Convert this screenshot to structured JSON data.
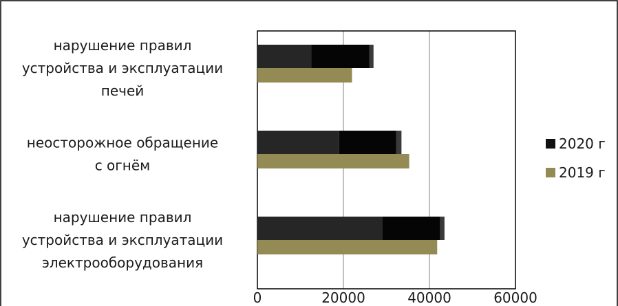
{
  "chart_data": {
    "type": "bar",
    "orientation": "horizontal",
    "stacked_segments": true,
    "title": "",
    "xlabel": "",
    "ylabel": "",
    "xlim": [
      0,
      60000
    ],
    "x_ticks": [
      "0",
      "20000",
      "40000",
      "60000"
    ],
    "grid": "vertical gridlines",
    "legend_position": "right",
    "categories": [
      {
        "lines": [
          "нарушение правил",
          "устройства и эксплуатации",
          "печей"
        ]
      },
      {
        "lines": [
          "неосторожное обращение",
          "с огнём"
        ]
      },
      {
        "lines": [
          "нарушение правил",
          "устройства и эксплуатации",
          "электрооборудования"
        ]
      }
    ],
    "series": [
      {
        "name": "2020 г",
        "color": "#111111",
        "values": [
          27000,
          33500,
          43500
        ],
        "segments": [
          {
            "values": [
              12500,
              19000,
              29000
            ],
            "color": "#262626"
          },
          {
            "values": [
              13500,
              13300,
              13500
            ],
            "color": "#050505"
          },
          {
            "values": [
              1000,
              1200,
              1000
            ],
            "color": "#3a3a3a"
          }
        ]
      },
      {
        "name": "2019 г",
        "color": "#948a54",
        "values": [
          22000,
          35300,
          41800
        ]
      }
    ]
  }
}
